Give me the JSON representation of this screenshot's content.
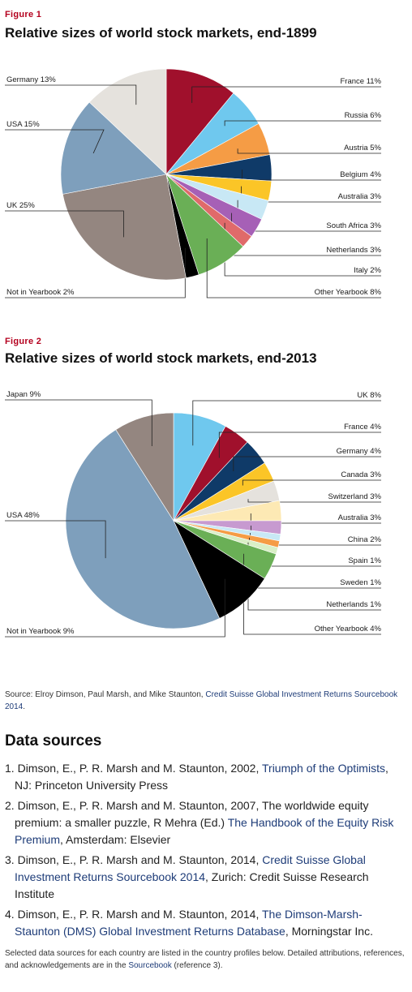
{
  "figure1": {
    "number": "Figure 1",
    "title": "Relative sizes of world stock markets, end-1899"
  },
  "figure2": {
    "number": "Figure 2",
    "title": "Relative sizes of world stock markets, end-2013"
  },
  "chart_data": [
    {
      "type": "pie",
      "title": "Relative sizes of world stock markets, end-1899",
      "unit": "%",
      "slices": [
        {
          "label": "France 11%",
          "value": 11,
          "color": "#a0102c"
        },
        {
          "label": "Russia 6%",
          "value": 6,
          "color": "#6fc8ee"
        },
        {
          "label": "Austria 5%",
          "value": 5,
          "color": "#f59c45"
        },
        {
          "label": "Belgium 4%",
          "value": 4,
          "color": "#0f3a68"
        },
        {
          "label": "Australia 3%",
          "value": 3,
          "color": "#fbc527"
        },
        {
          "label": "South Africa 3%",
          "value": 3,
          "color": "#c8e8f5"
        },
        {
          "label": "Netherlands 3%",
          "value": 3,
          "color": "#a660b6"
        },
        {
          "label": "Italy 2%",
          "value": 2,
          "color": "#e06a6a"
        },
        {
          "label": "Other Yearbook 8%",
          "value": 8,
          "color": "#6aaf56"
        },
        {
          "label": "Not in Yearbook 2%",
          "value": 2,
          "color": "#000000"
        },
        {
          "label": "UK 25%",
          "value": 25,
          "color": "#948680"
        },
        {
          "label": "USA 15%",
          "value": 15,
          "color": "#7e9fbc"
        },
        {
          "label": "Germany 13%",
          "value": 13,
          "color": "#e5e2dd"
        }
      ]
    },
    {
      "type": "pie",
      "title": "Relative sizes of world stock markets, end-2013",
      "unit": "%",
      "slices": [
        {
          "label": "UK 8%",
          "value": 8,
          "color": "#6fc8ee"
        },
        {
          "label": "France 4%",
          "value": 4,
          "color": "#a0102c"
        },
        {
          "label": "Germany 4%",
          "value": 4,
          "color": "#0f3a68"
        },
        {
          "label": "Canada 3%",
          "value": 3,
          "color": "#fbc527"
        },
        {
          "label": "Switzerland 3%",
          "value": 3,
          "color": "#e5e2dd"
        },
        {
          "label": "Australia 3%",
          "value": 3,
          "color": "#fde9b4"
        },
        {
          "label": "China 2%",
          "value": 2,
          "color": "#c79ad0"
        },
        {
          "label": "Spain 1%",
          "value": 1,
          "color": "#c8e8f5"
        },
        {
          "label": "Sweden 1%",
          "value": 1,
          "color": "#f59c45"
        },
        {
          "label": "Netherlands 1%",
          "value": 1,
          "color": "#d9efc6"
        },
        {
          "label": "Other Yearbook 4%",
          "value": 4,
          "color": "#6aaf56"
        },
        {
          "label": "Not in Yearbook 9%",
          "value": 9,
          "color": "#000000"
        },
        {
          "label": "USA 48%",
          "value": 48,
          "color": "#7e9fbc"
        },
        {
          "label": "Japan 9%",
          "value": 9,
          "color": "#948680"
        }
      ]
    }
  ],
  "source": {
    "prefix": "Source: Elroy Dimson, Paul Marsh, and Mike Staunton, ",
    "link": "Credit Suisse Global Investment Returns Sourcebook 2014",
    "suffix": "."
  },
  "data_sources": {
    "heading": "Data sources",
    "items": [
      {
        "num": "1.",
        "pre": "Dimson, E., P. R. Marsh and M. Staunton, 2002, ",
        "link": "Triumph of the Optimists",
        "post": ", NJ: Princeton University Press"
      },
      {
        "num": "2.",
        "pre": "Dimson, E., P. R. Marsh and M. Staunton, 2007, The worldwide equity premium: a smaller puzzle, R Mehra (Ed.) ",
        "link": "The Handbook of the Equity Risk Premium",
        "post": ", Amsterdam: Elsevier"
      },
      {
        "num": "3.",
        "pre": "Dimson, E., P. R. Marsh and M. Staunton, 2014, ",
        "link": "Credit Suisse Global Investment Returns Sourcebook 2014",
        "post": ", Zurich: Credit Suisse Research Institute"
      },
      {
        "num": "4.",
        "pre": "Dimson, E., P. R. Marsh and M. Staunton, 2014, ",
        "link": "The Dimson-Marsh-Staunton (DMS) Global Investment Returns Database",
        "post": ", Morningstar Inc."
      }
    ]
  },
  "footnote": {
    "pre": "Selected data sources for each country are listed in the country profiles below. Detailed attributions, references, and acknowledgements are in the ",
    "link": "Sourcebook",
    "post": " (reference 3)."
  }
}
